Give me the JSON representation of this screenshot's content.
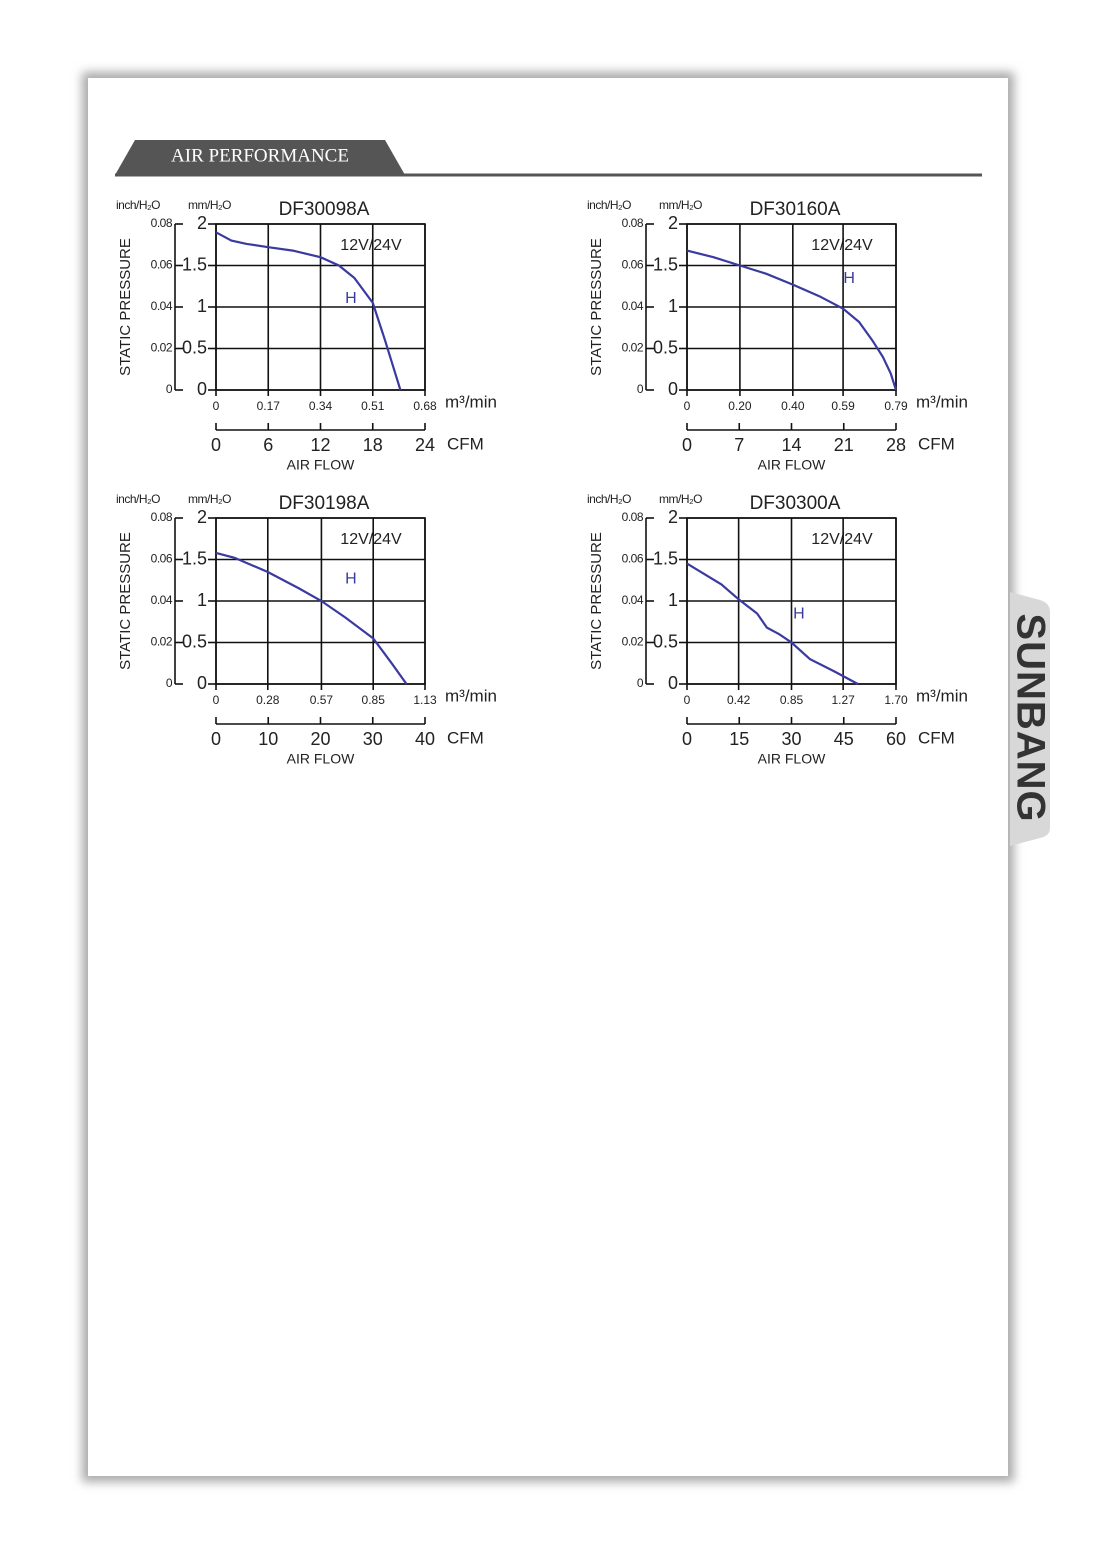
{
  "header": {
    "title": "AIR PERFORMANCE"
  },
  "logo": "SUNBANG",
  "chart_data": [
    {
      "type": "line",
      "title": "DF30098A",
      "subtitle": "12V/24V",
      "annotation": "H",
      "y_label": "STATIC PRESSURE",
      "x_label": "AIR FLOW",
      "y_unit": "mm/H₂O",
      "y2_unit": "inch/H₂O",
      "x_unit": "m³/min",
      "x2_unit": "CFM",
      "x": [
        0,
        0.05,
        0.1,
        0.17,
        0.25,
        0.34,
        0.4,
        0.45,
        0.51,
        0.55,
        0.6
      ],
      "values": [
        1.9,
        1.8,
        1.76,
        1.72,
        1.68,
        1.6,
        1.5,
        1.35,
        1.05,
        0.6,
        0
      ],
      "color": "#3a3aa0",
      "xlim": [
        0,
        0.68
      ],
      "xticks": [
        0,
        0.17,
        0.34,
        0.51,
        0.68
      ],
      "x2lim": [
        0,
        24
      ],
      "x2ticks": [
        0,
        6,
        12,
        18,
        24
      ],
      "ylim": [
        0,
        2
      ],
      "yticks": [
        0,
        0.5,
        1,
        1.5,
        2
      ],
      "y2lim": [
        0,
        0.08
      ],
      "y2ticks": [
        0,
        0.02,
        0.04,
        0.06,
        0.08
      ],
      "grid": true
    },
    {
      "type": "line",
      "title": "DF30160A",
      "subtitle": "12V/24V",
      "annotation": "H",
      "y_label": "STATIC PRESSURE",
      "x_label": "AIR FLOW",
      "y_unit": "mm/H₂O",
      "y2_unit": "inch/H₂O",
      "x_unit": "m³/min",
      "x2_unit": "CFM",
      "x": [
        0,
        0.1,
        0.2,
        0.3,
        0.4,
        0.5,
        0.59,
        0.65,
        0.7,
        0.74,
        0.77,
        0.79
      ],
      "values": [
        1.68,
        1.6,
        1.5,
        1.4,
        1.27,
        1.13,
        0.98,
        0.82,
        0.6,
        0.4,
        0.2,
        0
      ],
      "color": "#3a3aa0",
      "xlim": [
        0,
        0.79
      ],
      "xticks": [
        0,
        {
          "value": 0.2,
          "label": "0.20"
        },
        {
          "value": 0.4,
          "label": "0.40"
        },
        0.59,
        0.79
      ],
      "x2lim": [
        0,
        28
      ],
      "x2ticks": [
        0,
        7,
        14,
        21,
        28
      ],
      "ylim": [
        0,
        2
      ],
      "yticks": [
        0,
        0.5,
        1,
        1.5,
        2
      ],
      "y2lim": [
        0,
        0.08
      ],
      "y2ticks": [
        0,
        0.02,
        0.04,
        0.06,
        0.08
      ],
      "grid": true
    },
    {
      "type": "line",
      "title": "DF30198A",
      "subtitle": "12V/24V",
      "annotation": "H",
      "y_label": "STATIC PRESSURE",
      "x_label": "AIR FLOW",
      "y_unit": "mm/H₂O",
      "y2_unit": "inch/H₂O",
      "x_unit": "m³/min",
      "x2_unit": "CFM",
      "x": [
        0,
        0.1,
        0.28,
        0.45,
        0.57,
        0.7,
        0.85,
        0.95,
        1.03
      ],
      "values": [
        1.58,
        1.52,
        1.35,
        1.15,
        1.0,
        0.8,
        0.55,
        0.25,
        0
      ],
      "color": "#3a3aa0",
      "xlim": [
        0,
        1.13
      ],
      "xticks": [
        0,
        0.28,
        0.57,
        0.85,
        1.13
      ],
      "x2lim": [
        0,
        40
      ],
      "x2ticks": [
        0,
        10,
        20,
        30,
        40
      ],
      "ylim": [
        0,
        2
      ],
      "yticks": [
        0,
        0.5,
        1,
        1.5,
        2
      ],
      "y2lim": [
        0,
        0.08
      ],
      "y2ticks": [
        0,
        0.02,
        0.04,
        0.06,
        0.08
      ],
      "grid": true
    },
    {
      "type": "line",
      "title": "DF30300A",
      "subtitle": "12V/24V",
      "annotation": "H",
      "y_label": "STATIC PRESSURE",
      "x_label": "AIR FLOW",
      "y_unit": "mm/H₂O",
      "y2_unit": "inch/H₂O",
      "x_unit": "m³/min",
      "x2_unit": "CFM",
      "x": [
        0,
        0.28,
        0.42,
        0.57,
        0.65,
        0.75,
        0.85,
        1.0,
        1.2,
        1.39
      ],
      "values": [
        1.45,
        1.2,
        1.02,
        0.85,
        0.68,
        0.6,
        0.5,
        0.3,
        0.15,
        0
      ],
      "color": "#3a3aa0",
      "xlim": [
        0,
        1.7
      ],
      "xticks": [
        0,
        0.42,
        0.85,
        1.27,
        {
          "value": 1.7,
          "label": "1.70"
        }
      ],
      "x2lim": [
        0,
        60
      ],
      "x2ticks": [
        0,
        15,
        30,
        45,
        60
      ],
      "ylim": [
        0,
        2
      ],
      "yticks": [
        0,
        0.5,
        1,
        1.5,
        2
      ],
      "y2lim": [
        0,
        0.08
      ],
      "y2ticks": [
        0,
        0.02,
        0.04,
        0.06,
        0.08
      ],
      "grid": true
    }
  ]
}
